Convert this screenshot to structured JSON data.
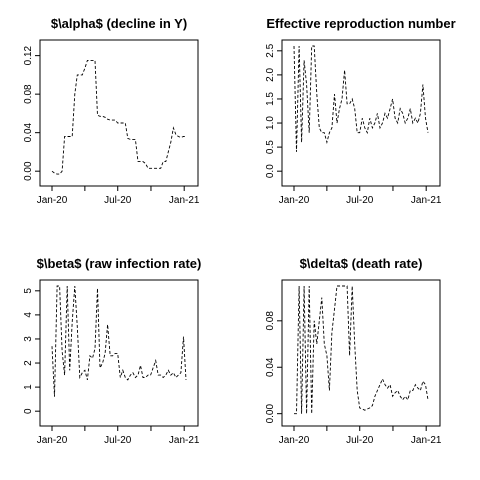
{
  "chart_data": [
    {
      "type": "line",
      "title": "$\\alpha$ (decline in Y)",
      "x_ticks": [
        "Jan-20",
        "Jul-20",
        "Jan-21"
      ],
      "y_ticks": [
        "0.00",
        "0.04",
        "0.08",
        "0.12"
      ],
      "xlim": [
        "2020-01",
        "2021-01"
      ],
      "ylim": [
        -0.005,
        0.13
      ],
      "line_style": "dashed",
      "series": [
        {
          "x": [
            "2020-01-01",
            "2020-01-08",
            "2020-01-15",
            "2020-01-22",
            "2020-01-29",
            "2020-02-05",
            "2020-02-12",
            "2020-02-19",
            "2020-02-26",
            "2020-03-04",
            "2020-03-11",
            "2020-03-18",
            "2020-03-25",
            "2020-04-01",
            "2020-04-08",
            "2020-04-15",
            "2020-04-22",
            "2020-04-29",
            "2020-05-06",
            "2020-05-13",
            "2020-05-20",
            "2020-05-27",
            "2020-06-03",
            "2020-06-10",
            "2020-06-17",
            "2020-06-24",
            "2020-07-01",
            "2020-07-08",
            "2020-07-15",
            "2020-07-22",
            "2020-07-29",
            "2020-08-05",
            "2020-08-12",
            "2020-08-19",
            "2020-08-26",
            "2020-09-02",
            "2020-09-09",
            "2020-09-16",
            "2020-09-23",
            "2020-09-30",
            "2020-10-07",
            "2020-10-14",
            "2020-10-21",
            "2020-10-28",
            "2020-11-04",
            "2020-11-11",
            "2020-11-18",
            "2020-11-25",
            "2020-12-02",
            "2020-12-09",
            "2020-12-16",
            "2020-12-23",
            "2020-12-30",
            "2021-01-06"
          ],
          "y": [
            0.0,
            -0.002,
            -0.003,
            -0.003,
            0.0,
            0.036,
            0.036,
            0.036,
            0.036,
            0.08,
            0.1,
            0.1,
            0.1,
            0.107,
            0.115,
            0.115,
            0.115,
            0.115,
            0.058,
            0.057,
            0.057,
            0.056,
            0.054,
            0.053,
            0.053,
            0.053,
            0.05,
            0.05,
            0.05,
            0.05,
            0.034,
            0.033,
            0.033,
            0.033,
            0.01,
            0.01,
            0.01,
            0.008,
            0.003,
            0.003,
            0.003,
            0.003,
            0.003,
            0.003,
            0.01,
            0.01,
            0.02,
            0.03,
            0.045,
            0.038,
            0.036,
            0.035,
            0.036,
            0.036
          ]
        }
      ]
    },
    {
      "type": "line",
      "title": "Effective reproduction number",
      "x_ticks": [
        "Jan-20",
        "Jul-20",
        "Jan-21"
      ],
      "y_ticks": [
        "0.0",
        "0.5",
        "1.0",
        "1.5",
        "2.0",
        "2.5"
      ],
      "xlim": [
        "2020-01",
        "2021-01"
      ],
      "ylim": [
        -0.1,
        2.6
      ],
      "line_style": "dashed",
      "series": [
        {
          "x": [
            "2020-01-01",
            "2020-01-08",
            "2020-01-15",
            "2020-01-22",
            "2020-01-29",
            "2020-02-05",
            "2020-02-12",
            "2020-02-19",
            "2020-02-26",
            "2020-03-04",
            "2020-03-11",
            "2020-03-18",
            "2020-03-25",
            "2020-04-01",
            "2020-04-08",
            "2020-04-15",
            "2020-04-22",
            "2020-04-29",
            "2020-05-06",
            "2020-05-13",
            "2020-05-20",
            "2020-05-27",
            "2020-06-03",
            "2020-06-10",
            "2020-06-17",
            "2020-06-24",
            "2020-07-01",
            "2020-07-08",
            "2020-07-15",
            "2020-07-22",
            "2020-07-29",
            "2020-08-05",
            "2020-08-12",
            "2020-08-19",
            "2020-08-26",
            "2020-09-02",
            "2020-09-09",
            "2020-09-16",
            "2020-09-23",
            "2020-09-30",
            "2020-10-07",
            "2020-10-14",
            "2020-10-21",
            "2020-10-28",
            "2020-11-04",
            "2020-11-11",
            "2020-11-18",
            "2020-11-25",
            "2020-12-02",
            "2020-12-09",
            "2020-12-16",
            "2020-12-23",
            "2020-12-30",
            "2021-01-06"
          ],
          "y": [
            2.6,
            0.4,
            2.6,
            0.6,
            2.3,
            1.8,
            0.8,
            2.6,
            2.6,
            1.6,
            0.9,
            0.8,
            0.8,
            0.6,
            0.8,
            0.9,
            1.6,
            1.0,
            1.3,
            1.5,
            2.1,
            1.4,
            1.4,
            1.5,
            1.3,
            0.8,
            0.8,
            1.1,
            0.9,
            0.8,
            1.1,
            0.9,
            1.0,
            1.2,
            0.9,
            1.0,
            1.2,
            1.1,
            1.3,
            1.5,
            1.1,
            1.0,
            1.3,
            1.2,
            1.0,
            1.1,
            1.3,
            1.0,
            1.1,
            1.0,
            1.2,
            1.8,
            1.1,
            0.8
          ]
        }
      ]
    },
    {
      "type": "line",
      "title": "$\\beta$ (raw infection rate)",
      "x_ticks": [
        "Jan-20",
        "Jul-20",
        "Jan-21"
      ],
      "y_ticks": [
        "0",
        "1",
        "2",
        "3",
        "4",
        "5"
      ],
      "xlim": [
        "2020-01",
        "2021-01"
      ],
      "ylim": [
        -0.2,
        5.2
      ],
      "line_style": "dashed",
      "series": [
        {
          "x": [
            "2020-01-01",
            "2020-01-08",
            "2020-01-15",
            "2020-01-22",
            "2020-01-29",
            "2020-02-05",
            "2020-02-12",
            "2020-02-19",
            "2020-02-26",
            "2020-03-04",
            "2020-03-11",
            "2020-03-18",
            "2020-03-25",
            "2020-04-01",
            "2020-04-08",
            "2020-04-15",
            "2020-04-22",
            "2020-04-29",
            "2020-05-06",
            "2020-05-13",
            "2020-05-20",
            "2020-05-27",
            "2020-06-03",
            "2020-06-10",
            "2020-06-17",
            "2020-06-24",
            "2020-07-01",
            "2020-07-08",
            "2020-07-15",
            "2020-07-22",
            "2020-07-29",
            "2020-08-05",
            "2020-08-12",
            "2020-08-19",
            "2020-08-26",
            "2020-09-02",
            "2020-09-09",
            "2020-09-16",
            "2020-09-23",
            "2020-09-30",
            "2020-10-07",
            "2020-10-14",
            "2020-10-21",
            "2020-10-28",
            "2020-11-04",
            "2020-11-11",
            "2020-11-18",
            "2020-11-25",
            "2020-12-02",
            "2020-12-09",
            "2020-12-16",
            "2020-12-23",
            "2020-12-30",
            "2021-01-06"
          ],
          "y": [
            2.7,
            0.6,
            5.2,
            5.2,
            2.5,
            1.5,
            5.2,
            1.7,
            3.7,
            5.2,
            3.5,
            1.4,
            1.6,
            1.7,
            1.3,
            2.3,
            2.2,
            2.6,
            5.1,
            1.8,
            2.0,
            2.4,
            3.6,
            2.3,
            2.3,
            2.4,
            2.4,
            1.4,
            1.7,
            1.4,
            1.3,
            1.5,
            1.6,
            1.4,
            1.5,
            1.9,
            1.4,
            1.4,
            1.5,
            1.5,
            1.8,
            2.1,
            1.5,
            1.5,
            1.4,
            1.5,
            1.7,
            1.5,
            1.6,
            1.4,
            1.5,
            1.6,
            3.1,
            1.3
          ]
        }
      ]
    },
    {
      "type": "line",
      "title": "$\\delta$ (death rate)",
      "x_ticks": [
        "Jan-20",
        "Jul-20",
        "Jan-21"
      ],
      "y_ticks": [
        "0.00",
        "0.04",
        "0.08"
      ],
      "xlim": [
        "2020-01",
        "2021-01"
      ],
      "ylim": [
        -0.002,
        0.11
      ],
      "line_style": "dashed",
      "series": [
        {
          "x": [
            "2020-01-01",
            "2020-01-08",
            "2020-01-15",
            "2020-01-22",
            "2020-01-29",
            "2020-02-05",
            "2020-02-12",
            "2020-02-19",
            "2020-02-26",
            "2020-03-04",
            "2020-03-11",
            "2020-03-18",
            "2020-03-25",
            "2020-04-01",
            "2020-04-08",
            "2020-04-15",
            "2020-04-22",
            "2020-04-29",
            "2020-05-06",
            "2020-05-13",
            "2020-05-20",
            "2020-05-27",
            "2020-06-03",
            "2020-06-10",
            "2020-06-17",
            "2020-06-24",
            "2020-07-01",
            "2020-07-08",
            "2020-07-15",
            "2020-07-22",
            "2020-07-29",
            "2020-08-05",
            "2020-08-12",
            "2020-08-19",
            "2020-08-26",
            "2020-09-02",
            "2020-09-09",
            "2020-09-16",
            "2020-09-23",
            "2020-09-30",
            "2020-10-07",
            "2020-10-14",
            "2020-10-21",
            "2020-10-28",
            "2020-11-04",
            "2020-11-11",
            "2020-11-18",
            "2020-11-25",
            "2020-12-02",
            "2020-12-09",
            "2020-12-16",
            "2020-12-23",
            "2020-12-30",
            "2021-01-06"
          ],
          "y": [
            0.0,
            0.0,
            0.11,
            0.0,
            0.11,
            0.0,
            0.11,
            0.0,
            0.08,
            0.06,
            0.08,
            0.1,
            0.06,
            0.05,
            0.02,
            0.07,
            0.09,
            0.11,
            0.11,
            0.11,
            0.11,
            0.11,
            0.05,
            0.11,
            0.06,
            0.02,
            0.005,
            0.004,
            0.003,
            0.004,
            0.005,
            0.007,
            0.015,
            0.02,
            0.025,
            0.03,
            0.025,
            0.022,
            0.025,
            0.015,
            0.018,
            0.02,
            0.015,
            0.012,
            0.015,
            0.012,
            0.02,
            0.02,
            0.025,
            0.022,
            0.02,
            0.028,
            0.025,
            0.012
          ]
        }
      ]
    }
  ]
}
